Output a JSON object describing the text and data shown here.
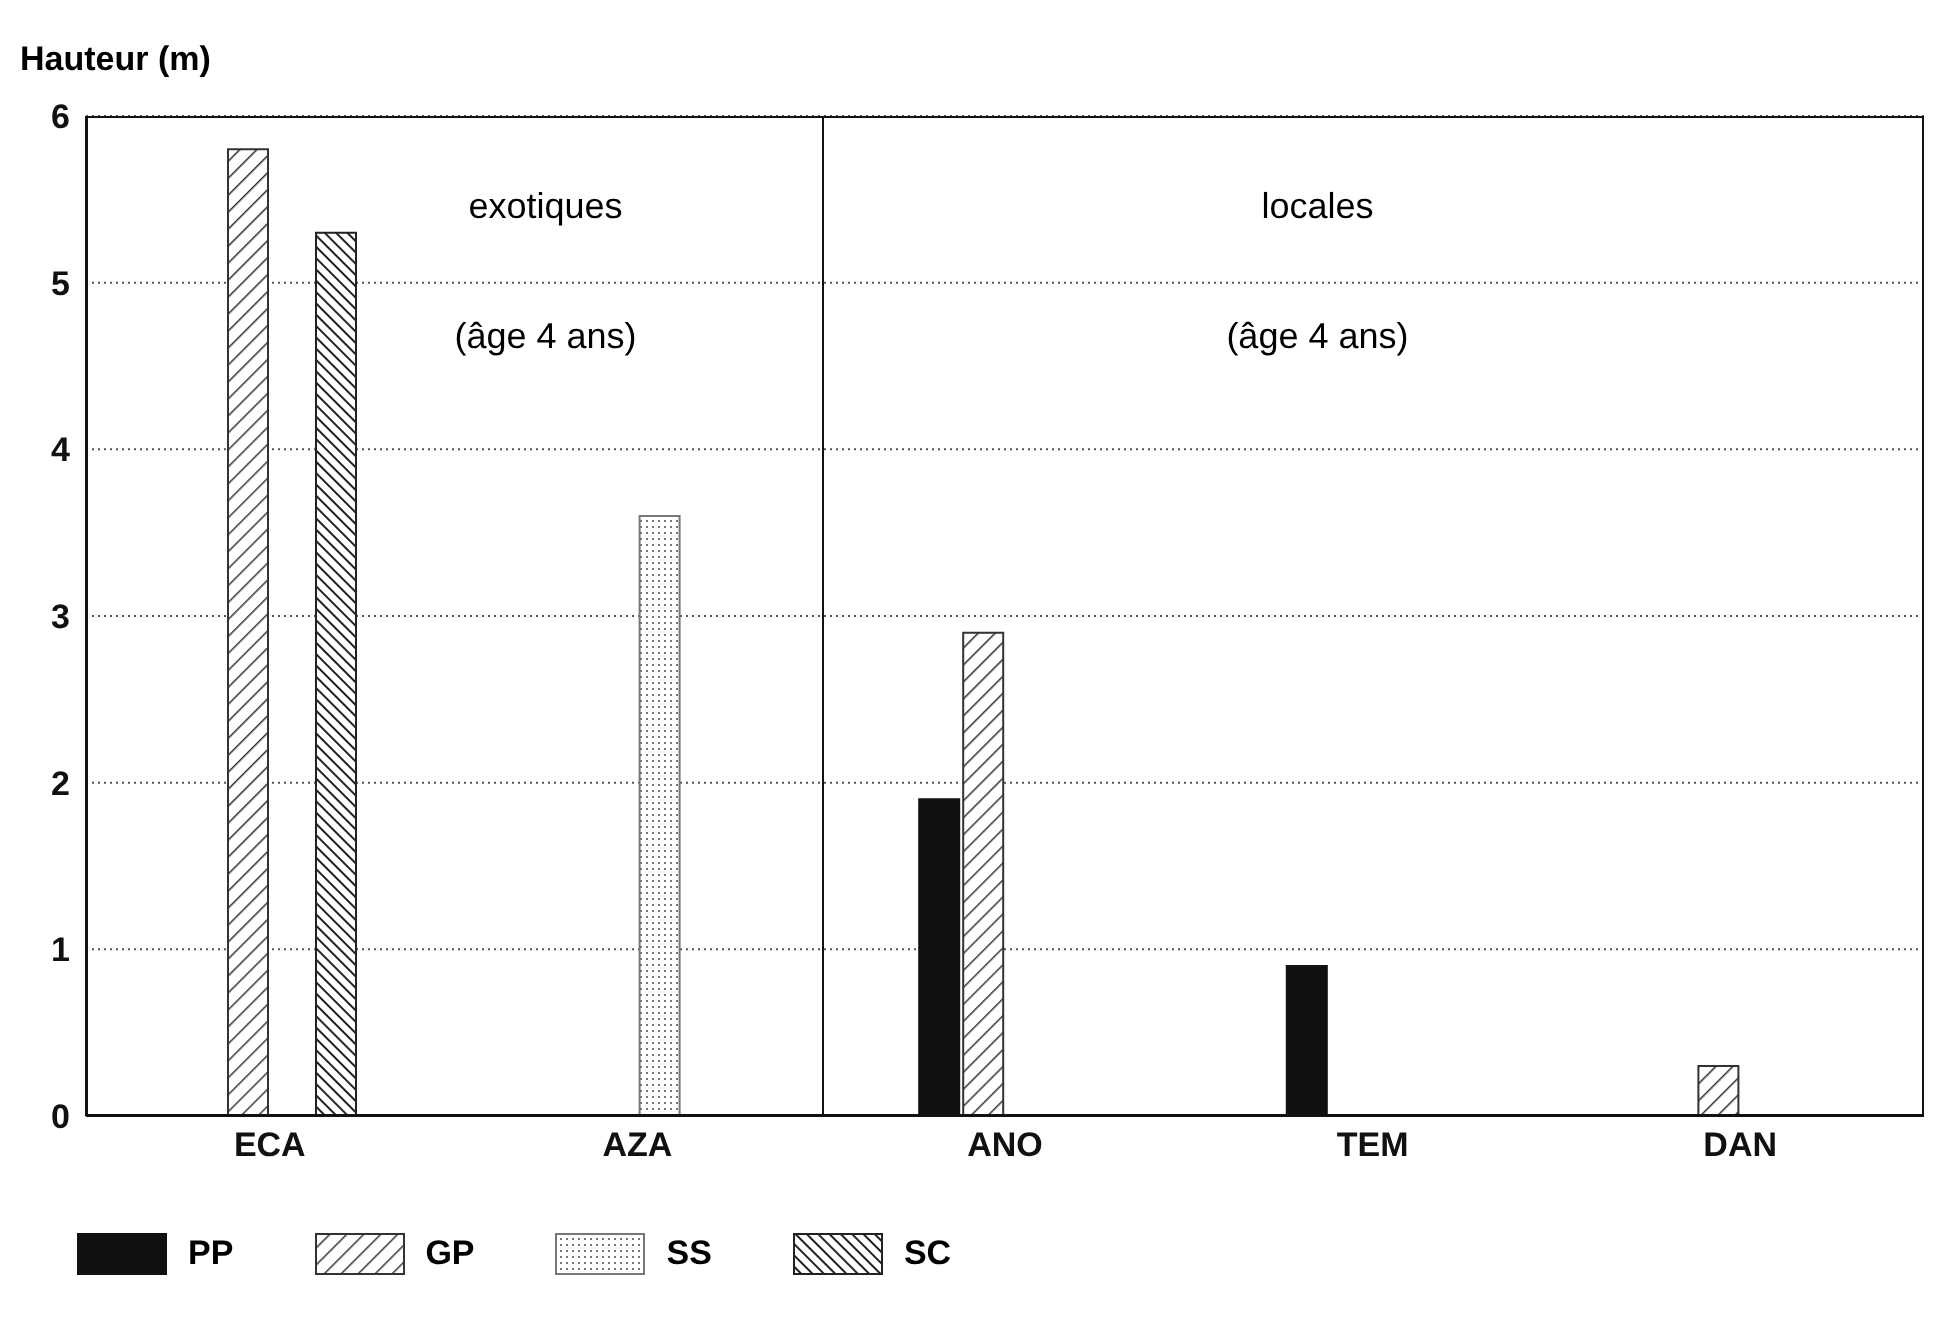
{
  "chart_data": {
    "type": "bar",
    "ylabel": "Hauteur (m)",
    "categories": [
      "ECA",
      "AZA",
      "ANO",
      "TEM",
      "DAN"
    ],
    "series": [
      {
        "name": "PP",
        "color": "#111111",
        "values": [
          null,
          null,
          1.9,
          0.9,
          null
        ]
      },
      {
        "name": "GP",
        "color": "#333333",
        "values": [
          5.8,
          null,
          2.9,
          null,
          0.3
        ]
      },
      {
        "name": "SS",
        "color": "#777777",
        "values": [
          null,
          3.6,
          null,
          null,
          null
        ]
      },
      {
        "name": "SC",
        "color": "#222222",
        "values": [
          5.3,
          null,
          null,
          null,
          null
        ]
      }
    ],
    "ylim": [
      0,
      6
    ],
    "yticks": [
      0,
      1,
      2,
      3,
      4,
      5,
      6
    ],
    "grid": "y",
    "legend": "bottom left",
    "annotations": [
      "exotiques",
      "(âge 4 ans)",
      "locales",
      "(âge 4 ans)"
    ]
  }
}
